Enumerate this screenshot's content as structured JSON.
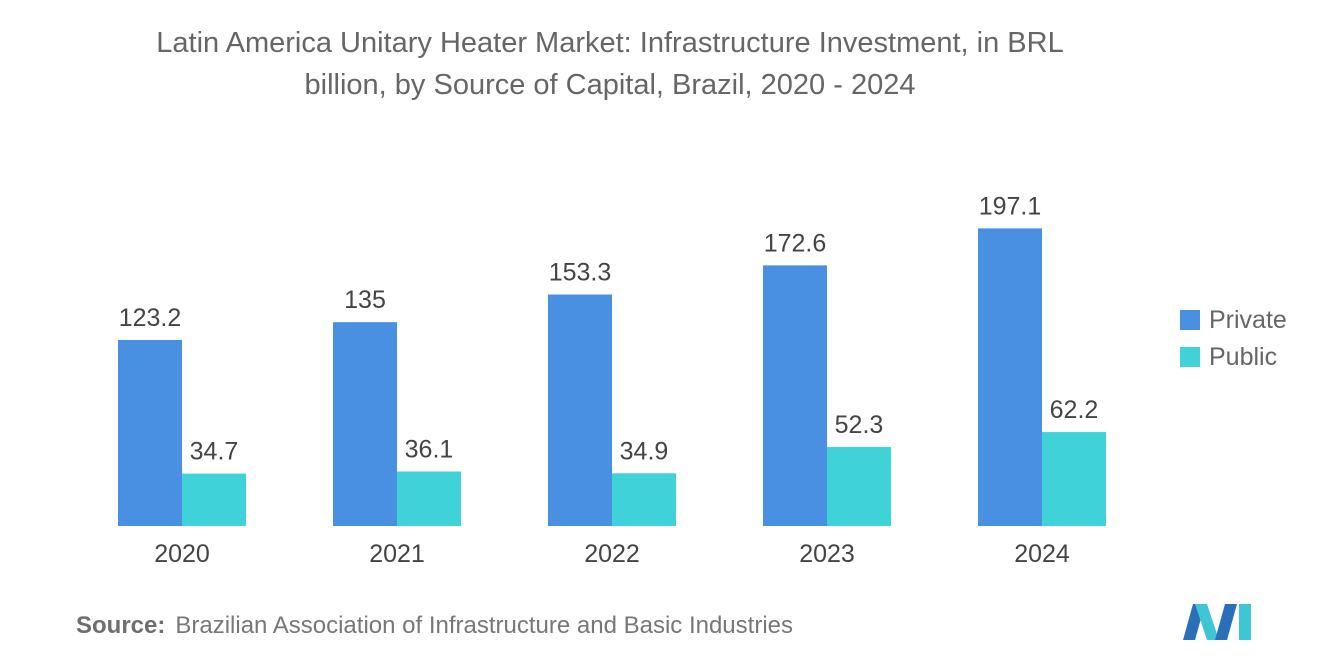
{
  "title_lines": [
    "Latin America Unitary Heater Market: Infrastructure Investment, in BRL",
    "billion, by Source of Capital, Brazil, 2020 - 2024"
  ],
  "source": {
    "label": "Source:",
    "text": "Brazilian Association of Infrastructure and Basic Industries"
  },
  "colors": {
    "private": "#4a90e2",
    "public": "#3fd3d9",
    "text": "#555555"
  },
  "chart_data": {
    "type": "bar",
    "title": "Latin America Unitary Heater Market: Infrastructure Investment, in BRL billion, by Source of Capital, Brazil, 2020 - 2024",
    "categories": [
      "2020",
      "2021",
      "2022",
      "2023",
      "2024"
    ],
    "series": [
      {
        "name": "Private",
        "values": [
          123.2,
          135,
          153.3,
          172.6,
          197.1
        ]
      },
      {
        "name": "Public",
        "values": [
          34.7,
          36.1,
          34.9,
          52.3,
          62.2
        ]
      }
    ],
    "value_labels": [
      [
        "123.2",
        "135",
        "153.3",
        "172.6",
        "197.1"
      ],
      [
        "34.7",
        "36.1",
        "34.9",
        "52.3",
        "62.2"
      ]
    ],
    "xlabel": "",
    "ylabel": "",
    "ylim": [
      0,
      200
    ],
    "grid": false,
    "legend_position": "right"
  }
}
